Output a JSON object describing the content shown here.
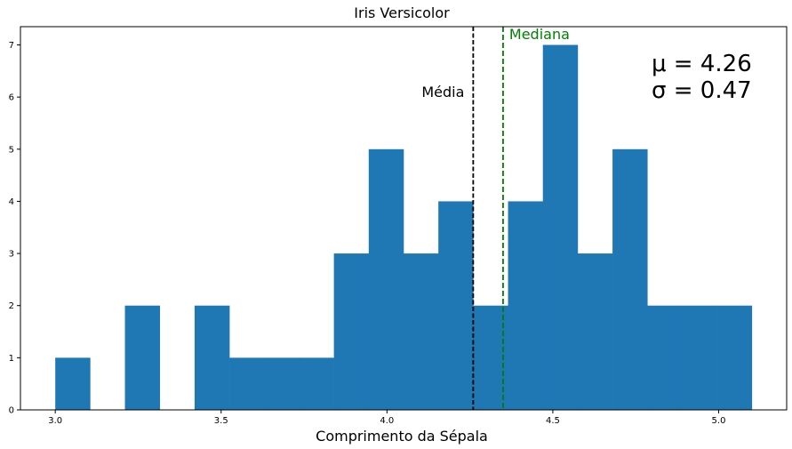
{
  "chart_data": {
    "type": "histogram",
    "title": "Iris Versicolor",
    "xlabel": "Comprimento da Sépala",
    "ylabel": "",
    "xlim": [
      2.895,
      5.205
    ],
    "ylim": [
      0,
      7.35
    ],
    "x_ticks": [
      3.0,
      3.5,
      4.0,
      4.5,
      5.0
    ],
    "x_tick_labels": [
      "3.0",
      "3.5",
      "4.0",
      "4.5",
      "5.0"
    ],
    "y_ticks": [
      0,
      1,
      2,
      3,
      4,
      5,
      6,
      7
    ],
    "y_tick_labels": [
      "0",
      "1",
      "2",
      "3",
      "4",
      "5",
      "6",
      "7"
    ],
    "bin_start": 3.0,
    "bin_width": 0.105,
    "counts": [
      1,
      0,
      2,
      0,
      2,
      1,
      1,
      1,
      3,
      5,
      3,
      4,
      2,
      4,
      7,
      3,
      5,
      2,
      2,
      2
    ],
    "bar_color": "#1f77b4",
    "mean": {
      "value": 4.26,
      "label": "Média",
      "color": "#000000"
    },
    "median": {
      "value": 4.35,
      "label": "Mediana",
      "color": "#008000"
    },
    "stats": {
      "mu": "μ = 4.26",
      "sigma": "σ = 0.47"
    }
  }
}
